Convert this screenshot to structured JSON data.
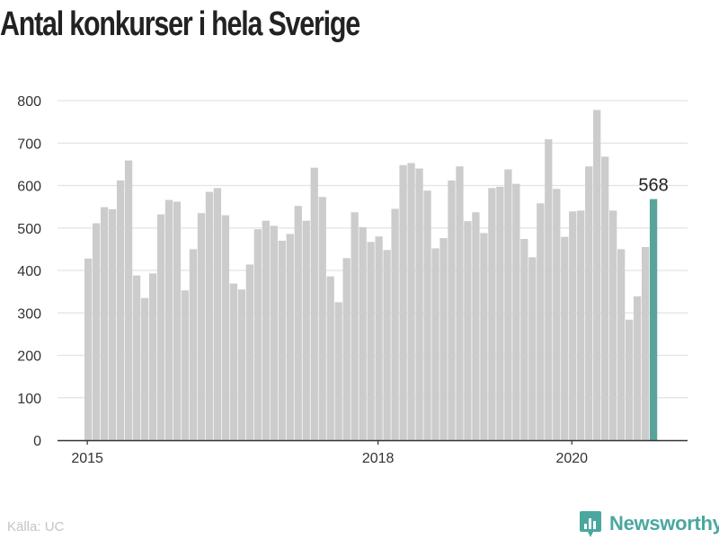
{
  "title": "Antal konkurser i hela Sverige",
  "source": "Källa: UC",
  "brand": {
    "name": "Newsworthy",
    "logo_icon": "newsworthy-logo-icon",
    "color": "#4aa79f"
  },
  "colors": {
    "bar": "#cccccc",
    "highlight": "#5aa39b",
    "grid": "#e3e3e3",
    "axis": "#333333"
  },
  "chart_data": {
    "type": "bar",
    "title": "Antal konkurser i hela Sverige",
    "xlabel": "",
    "ylabel": "",
    "ylim": [
      0,
      800
    ],
    "y_ticks": [
      0,
      100,
      200,
      300,
      400,
      500,
      600,
      700,
      800
    ],
    "x_tick_labels": [
      {
        "label": "2015",
        "index": 0
      },
      {
        "label": "2018",
        "index": 36
      },
      {
        "label": "2020",
        "index": 60
      }
    ],
    "start_month": "2015-01",
    "values": [
      428,
      511,
      549,
      544,
      612,
      659,
      388,
      335,
      393,
      532,
      566,
      562,
      353,
      450,
      535,
      585,
      594,
      530,
      369,
      355,
      414,
      497,
      517,
      505,
      470,
      486,
      552,
      517,
      642,
      573,
      386,
      325,
      429,
      537,
      502,
      467,
      480,
      448,
      545,
      648,
      653,
      640,
      588,
      452,
      476,
      612,
      645,
      516,
      537,
      488,
      594,
      597,
      638,
      604,
      474,
      431,
      558,
      709,
      592,
      479,
      539,
      541,
      645,
      778,
      668,
      541,
      450,
      284,
      339,
      455,
      568
    ],
    "highlight": {
      "index": 70,
      "label": "568"
    },
    "grid": true,
    "legend": "none"
  }
}
